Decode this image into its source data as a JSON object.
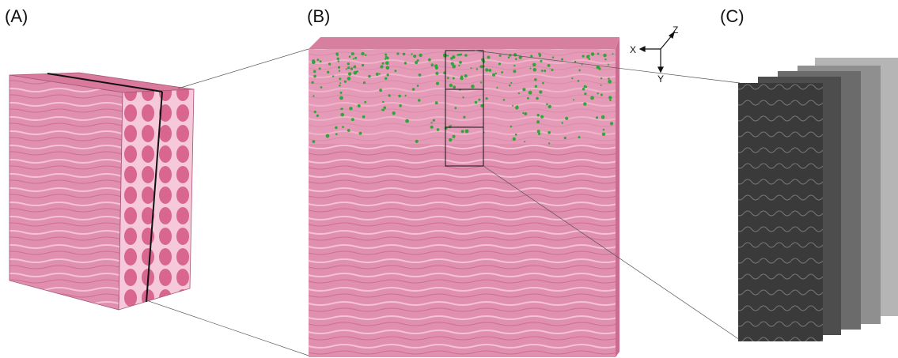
{
  "panels": [
    {
      "label": "(A)"
    },
    {
      "label": "(B)"
    },
    {
      "label": "(C)"
    }
  ],
  "axes": {
    "x": "X",
    "z": "Z",
    "y": "Y"
  }
}
